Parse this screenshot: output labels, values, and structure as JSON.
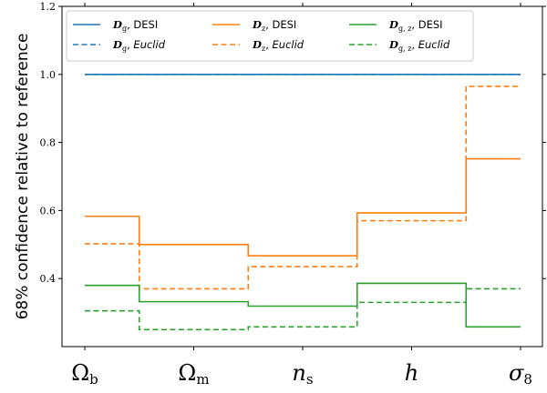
{
  "chart_data": {
    "type": "line",
    "step": "mid",
    "categories": [
      "Ωb",
      "Ωm",
      "ns",
      "h",
      "σ8"
    ],
    "category_parts": [
      {
        "main": "Ω",
        "sub": "b",
        "main_italic": false
      },
      {
        "main": "Ω",
        "sub": "m",
        "main_italic": false
      },
      {
        "main": "n",
        "sub": "s",
        "main_italic": true
      },
      {
        "main": "h",
        "sub": "",
        "main_italic": true
      },
      {
        "main": "σ",
        "sub": "8",
        "main_italic": true
      }
    ],
    "ylabel": "68% confidence relative to reference",
    "ylim": [
      0.2,
      1.2
    ],
    "yticks": [
      0.4,
      0.6,
      0.8,
      1.0,
      1.2
    ],
    "ytick_labels": [
      "0.4",
      "0.6",
      "0.8",
      "1.0",
      "1.2"
    ],
    "grid": false,
    "legend_position": "top",
    "series": [
      {
        "name": "Dg, DESI",
        "sym": "D",
        "sub": "g",
        "survey": "DESI",
        "survey_italic": false,
        "color": "#1f77b4",
        "dashed": false,
        "values": [
          1.0,
          1.0,
          1.0,
          1.0,
          1.0
        ]
      },
      {
        "name": "Dg, Euclid",
        "sym": "D",
        "sub": "g",
        "survey": "Euclid",
        "survey_italic": true,
        "color": "#1f77b4",
        "dashed": true,
        "values": [
          1.0,
          1.0,
          1.0,
          1.0,
          1.0
        ]
      },
      {
        "name": "Dz, DESI",
        "sym": "D",
        "sub": "z",
        "survey": "DESI",
        "survey_italic": false,
        "color": "#ff7f0e",
        "dashed": false,
        "values": [
          0.583,
          0.5,
          0.467,
          0.593,
          0.752
        ]
      },
      {
        "name": "Dz, Euclid",
        "sym": "D",
        "sub": "z",
        "survey": "Euclid",
        "survey_italic": true,
        "color": "#ff7f0e",
        "dashed": true,
        "values": [
          0.502,
          0.37,
          0.435,
          0.57,
          0.965
        ]
      },
      {
        "name": "Dg,z, DESI",
        "sym": "D",
        "sub": "g, z",
        "survey": "DESI",
        "survey_italic": false,
        "color": "#2ca02c",
        "dashed": false,
        "values": [
          0.38,
          0.332,
          0.319,
          0.386,
          0.258
        ]
      },
      {
        "name": "Dg,z, Euclid",
        "sym": "D",
        "sub": "g, z",
        "survey": "Euclid",
        "survey_italic": true,
        "color": "#2ca02c",
        "dashed": true,
        "values": [
          0.305,
          0.25,
          0.258,
          0.33,
          0.37
        ]
      }
    ]
  }
}
